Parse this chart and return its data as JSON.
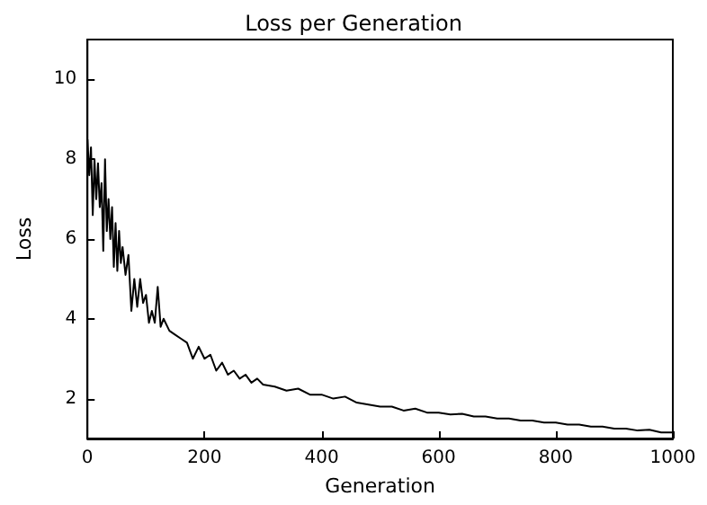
{
  "chart_data": {
    "type": "line",
    "title": "Loss per Generation",
    "xlabel": "Generation",
    "ylabel": "Loss",
    "xlim": [
      0,
      1000
    ],
    "xticks": [
      0,
      200,
      400,
      600,
      800,
      1000
    ],
    "ylim": [
      1,
      11
    ],
    "yticks": [
      2,
      4,
      6,
      8,
      10
    ],
    "grid": false,
    "marker": "none",
    "line_style": "solid",
    "series": [
      {
        "color": "#000000",
        "x": [
          0,
          3,
          6,
          9,
          12,
          15,
          18,
          21,
          24,
          27,
          30,
          33,
          36,
          39,
          42,
          45,
          48,
          51,
          54,
          57,
          60,
          65,
          70,
          75,
          80,
          85,
          90,
          95,
          100,
          105,
          110,
          115,
          120,
          125,
          130,
          140,
          150,
          160,
          170,
          180,
          190,
          200,
          210,
          220,
          230,
          240,
          250,
          260,
          270,
          280,
          290,
          300,
          320,
          340,
          360,
          380,
          400,
          420,
          440,
          460,
          480,
          500,
          520,
          540,
          560,
          580,
          600,
          620,
          640,
          660,
          680,
          700,
          720,
          740,
          760,
          780,
          800,
          820,
          840,
          860,
          880,
          900,
          920,
          940,
          960,
          980,
          1000
        ],
        "values": [
          8.5,
          7.6,
          8.3,
          6.6,
          8.0,
          7.0,
          7.9,
          6.8,
          7.4,
          5.7,
          8.0,
          6.2,
          7.0,
          6.0,
          6.8,
          5.3,
          6.4,
          5.2,
          6.2,
          5.4,
          5.8,
          5.1,
          5.6,
          4.2,
          5.0,
          4.3,
          5.0,
          4.4,
          4.6,
          3.9,
          4.2,
          3.9,
          4.8,
          3.8,
          4.0,
          3.7,
          3.6,
          3.5,
          3.4,
          3.0,
          3.3,
          3.0,
          3.1,
          2.7,
          2.9,
          2.6,
          2.7,
          2.5,
          2.6,
          2.4,
          2.5,
          2.35,
          2.3,
          2.2,
          2.25,
          2.1,
          2.1,
          2.0,
          2.05,
          1.9,
          1.85,
          1.8,
          1.8,
          1.7,
          1.75,
          1.65,
          1.65,
          1.6,
          1.62,
          1.55,
          1.55,
          1.5,
          1.5,
          1.45,
          1.45,
          1.4,
          1.4,
          1.35,
          1.35,
          1.3,
          1.3,
          1.25,
          1.25,
          1.2,
          1.22,
          1.15,
          1.15
        ]
      }
    ]
  }
}
